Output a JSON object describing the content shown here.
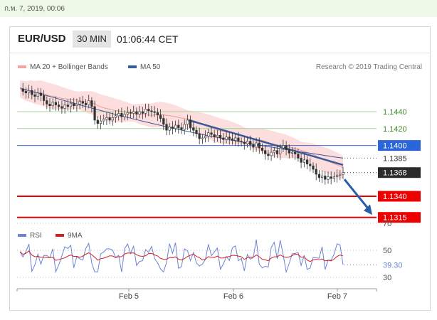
{
  "header": {
    "date_text": "ก.พ. 7, 2019, 00:06",
    "pair": "EUR/USD",
    "timeframe": "30 MIN",
    "clock": "01:06:44 CET"
  },
  "colors": {
    "accent_blue": "#2a5da8",
    "support_red": "#ee0000",
    "resistance_green": "#a8d49a",
    "band_fill": "#fbd3d3",
    "ma50": "#3a5b99",
    "rsi": "#6b83d6",
    "rsi_ma": "#d42020"
  },
  "chart_data": {
    "type": "line",
    "title": "EUR/USD",
    "legend": [
      {
        "name": "MA 20 + Bollinger Bands",
        "color": "#f4a3a3"
      },
      {
        "name": "MA 50",
        "color": "#3a5b99"
      }
    ],
    "credit": "Research © 2019 Trading Central",
    "price_range": [
      1.1305,
      1.148
    ],
    "x_ticks": [
      "Feb 5",
      "Feb 6",
      "Feb 7"
    ],
    "levels": [
      {
        "value": 1.144,
        "label": "1.1440",
        "kind": "resistance",
        "style": "line",
        "color": "#a8d49a",
        "badge_bg": "#ffffff",
        "badge_fg": "#3c8a2a"
      },
      {
        "value": 1.142,
        "label": "1.1420",
        "kind": "resistance",
        "style": "line",
        "color": "#a8d49a",
        "badge_bg": "#ffffff",
        "badge_fg": "#3c8a2a"
      },
      {
        "value": 1.14,
        "label": "1.1400",
        "kind": "pivot",
        "style": "line",
        "color": "#3d6fd6",
        "badge_bg": "#2a66d9",
        "badge_fg": "#ffffff"
      },
      {
        "value": 1.1385,
        "label": "1.1385",
        "kind": "ma",
        "style": "dotted",
        "color": "#777777",
        "badge_bg": "#ffffff",
        "badge_fg": "#333333"
      },
      {
        "value": 1.1368,
        "label": "1.1368",
        "kind": "last",
        "style": "dotted",
        "color": "#333333",
        "badge_bg": "#2b2b2b",
        "badge_fg": "#ffffff"
      },
      {
        "value": 1.134,
        "label": "1.1340",
        "kind": "support",
        "style": "thick",
        "color": "#ee0000",
        "badge_bg": "#ee0000",
        "badge_fg": "#ffffff"
      },
      {
        "value": 1.1315,
        "label": "1.1315",
        "kind": "support",
        "style": "thick",
        "color": "#ee0000",
        "badge_bg": "#ee0000",
        "badge_fg": "#ffffff"
      }
    ],
    "close_series": [
      1.1467,
      1.1464,
      1.1462,
      1.1465,
      1.146,
      1.1458,
      1.1462,
      1.1459,
      1.1453,
      1.1449,
      1.1447,
      1.1451,
      1.1448,
      1.1446,
      1.1444,
      1.1448,
      1.1446,
      1.145,
      1.1447,
      1.1449,
      1.1452,
      1.145,
      1.1448,
      1.1453,
      1.1446,
      1.143,
      1.1426,
      1.1429,
      1.1431,
      1.1433,
      1.143,
      1.1433,
      1.1435,
      1.1438,
      1.1434,
      1.1437,
      1.1439,
      1.1438,
      1.144,
      1.1437,
      1.144,
      1.1438,
      1.1443,
      1.1441,
      1.144,
      1.1439,
      1.1436,
      1.1432,
      1.1425,
      1.1418,
      1.1422,
      1.142,
      1.1424,
      1.1421,
      1.1419,
      1.1425,
      1.143,
      1.1421,
      1.1418,
      1.1414,
      1.1408,
      1.1409,
      1.1411,
      1.1415,
      1.1413,
      1.141,
      1.1412,
      1.1409,
      1.1407,
      1.141,
      1.1408,
      1.1406,
      1.1409,
      1.1405,
      1.1404,
      1.1402,
      1.1405,
      1.1401,
      1.1398,
      1.1403,
      1.1397,
      1.1394,
      1.139,
      1.1388,
      1.1392,
      1.1394,
      1.139,
      1.1397,
      1.14,
      1.1395,
      1.1391,
      1.1392,
      1.139,
      1.1385,
      1.138,
      1.1383,
      1.1378,
      1.1376,
      1.1372,
      1.1366,
      1.1362,
      1.1364,
      1.136,
      1.1363,
      1.1361,
      1.1363,
      1.1365,
      1.1366,
      1.1368
    ],
    "ma50": {
      "start": 1.1468,
      "end": 1.1385
    },
    "arrow": {
      "from": 1.136,
      "to": 1.1318
    },
    "rsi": {
      "levels": [
        70,
        50,
        30
      ],
      "last": "39.30",
      "legend": [
        {
          "name": "RSI",
          "color": "#6b83d6"
        },
        {
          "name": "9MA",
          "color": "#d42020"
        }
      ]
    }
  }
}
